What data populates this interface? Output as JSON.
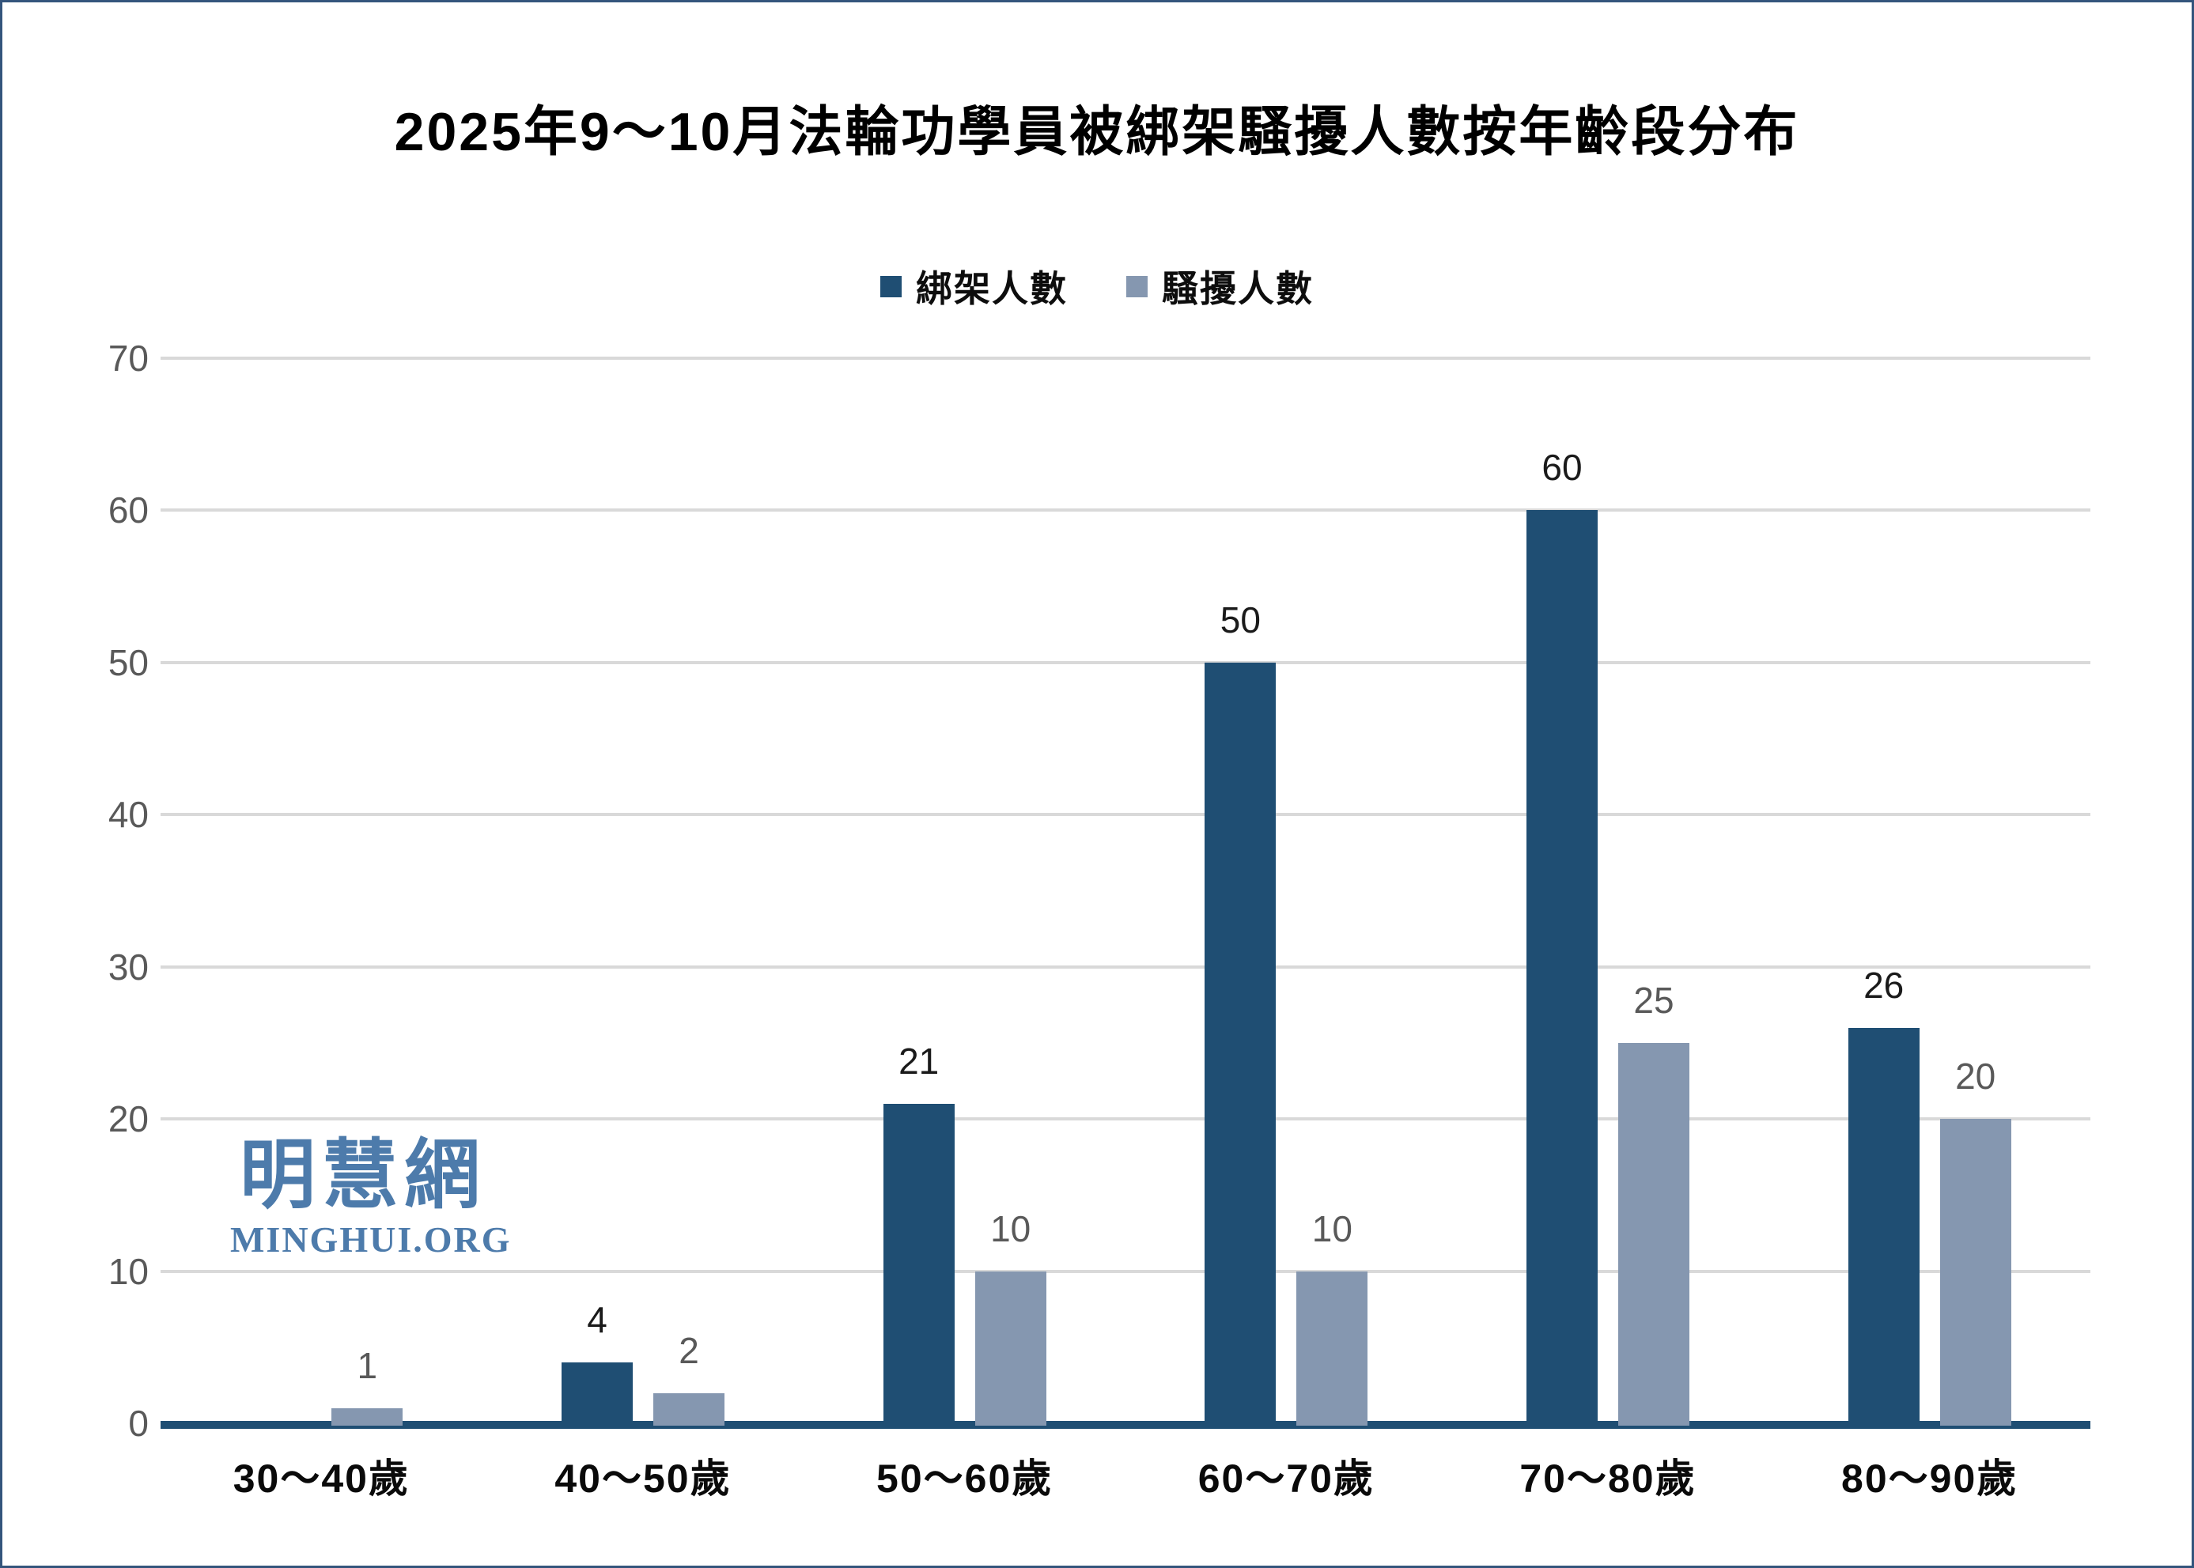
{
  "page": {
    "title": "2025年9～10月法輪功學員被綁架騷擾人數按年齡段分布",
    "watermark": {
      "cjk": "明慧網",
      "latin": "MINGHUI.ORG",
      "color": "#4d7bab"
    },
    "border_color": "#34557c",
    "background_color": "#ffffff"
  },
  "chart_data": {
    "type": "bar",
    "title": "2025年9～10月法輪功學員被綁架騷擾人數按年齡段分布",
    "categories": [
      "30～40歲",
      "40～50歲",
      "50～60歲",
      "60～70歲",
      "70～80歲",
      "80～90歲"
    ],
    "series": [
      {
        "key": "kidnapped",
        "name": "綁架人數",
        "values": [
          0,
          4,
          21,
          50,
          60,
          26
        ],
        "color": "#1f4e73",
        "label_color": "#1a1a1a"
      },
      {
        "key": "harassed",
        "name": "騷擾人數",
        "values": [
          1,
          2,
          10,
          10,
          25,
          20
        ],
        "color": "#8597b0",
        "label_color": "#595959"
      }
    ],
    "xlabel": "",
    "ylabel": "",
    "ylim": [
      0,
      70
    ],
    "yticks": [
      0,
      10,
      20,
      30,
      40,
      50,
      60,
      70
    ],
    "grid": true,
    "gridline_color": "#d9d9d9",
    "axis_line_color": "#1f4e73",
    "tick_label_color": "#595959",
    "legend_position": "top-center",
    "value_labels_shown": true,
    "zero_values_hidden": true
  }
}
